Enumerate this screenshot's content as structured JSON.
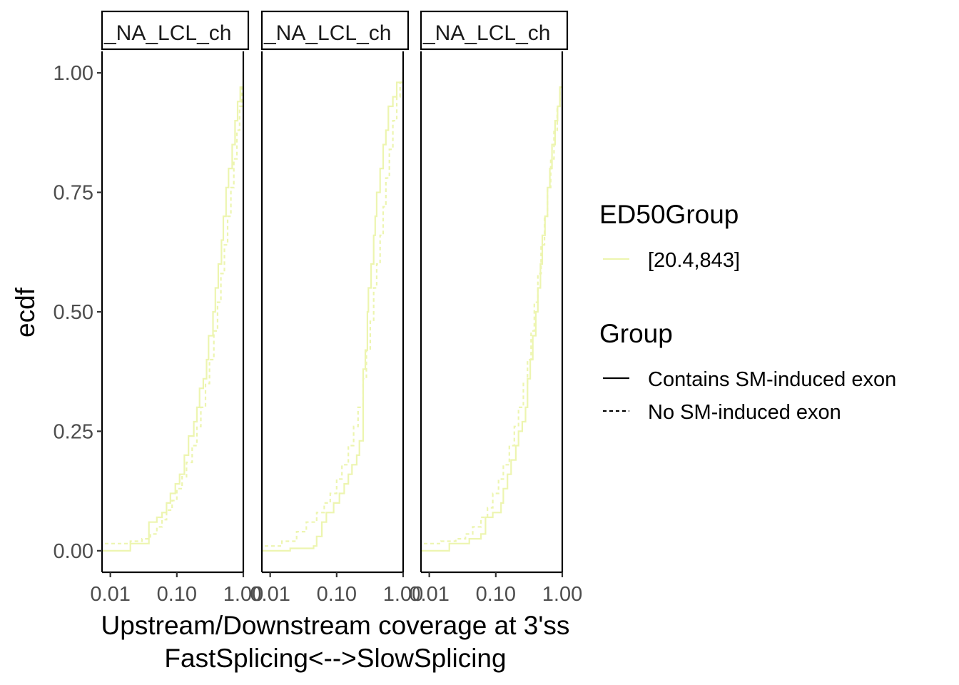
{
  "chart_data": {
    "type": "line",
    "subtype": "ecdf",
    "facets": [
      "_NA_LCL_ch",
      "_NA_LCL_ch",
      "_NA_LCL_ch"
    ],
    "xlabel_line1": "Upstream/Downstream coverage at 3'ss",
    "xlabel_line2": "FastSplicing<-->SlowSplicing",
    "ylabel": "ecdf",
    "x_scale": "log10",
    "xlim": [
      0.0075,
      1.0
    ],
    "ylim": [
      -0.045,
      1.045
    ],
    "x_ticks": [
      0.01,
      0.1,
      1.0
    ],
    "x_tick_labels": [
      "0.01",
      "0.10",
      "1.00"
    ],
    "y_ticks": [
      0,
      0.25,
      0.5,
      0.75,
      1.0
    ],
    "y_tick_labels": [
      "0.00",
      "0.25",
      "0.50",
      "0.75",
      "1.00"
    ],
    "grid": false,
    "series_color": "#edf5b0",
    "legend": {
      "placement": "right",
      "color_title": "ED50Group",
      "color_entries": [
        {
          "label": "[20.4,843]",
          "color": "#edf5b0"
        }
      ],
      "linetype_title": "Group",
      "linetype_entries": [
        {
          "label": "Contains SM-induced exon",
          "linetype": "solid"
        },
        {
          "label": "No SM-induced exon",
          "linetype": "dashed"
        }
      ]
    },
    "panels": [
      {
        "facet": "_NA_LCL_ch",
        "series": [
          {
            "name": "Contains SM-induced exon",
            "linetype": "solid",
            "x": [
              0.007,
              0.02,
              0.038,
              0.05,
              0.06,
              0.07,
              0.08,
              0.095,
              0.11,
              0.13,
              0.15,
              0.18,
              0.2,
              0.22,
              0.25,
              0.28,
              0.3,
              0.35,
              0.38,
              0.42,
              0.47,
              0.5,
              0.55,
              0.6,
              0.68,
              0.75,
              0.82,
              0.9,
              1.0
            ],
            "y": [
              0.0,
              0.015,
              0.06,
              0.07,
              0.08,
              0.1,
              0.12,
              0.14,
              0.16,
              0.2,
              0.24,
              0.27,
              0.3,
              0.34,
              0.36,
              0.4,
              0.45,
              0.5,
              0.55,
              0.6,
              0.65,
              0.7,
              0.76,
              0.8,
              0.85,
              0.9,
              0.94,
              0.97,
              1.0
            ]
          },
          {
            "name": "No SM-induced exon",
            "linetype": "dashed",
            "x": [
              0.007,
              0.02,
              0.03,
              0.04,
              0.05,
              0.06,
              0.07,
              0.085,
              0.1,
              0.12,
              0.14,
              0.17,
              0.2,
              0.23,
              0.27,
              0.31,
              0.36,
              0.41,
              0.46,
              0.52,
              0.58,
              0.65,
              0.72,
              0.8,
              0.88,
              0.95,
              1.0
            ],
            "y": [
              0.015,
              0.02,
              0.025,
              0.035,
              0.05,
              0.065,
              0.085,
              0.105,
              0.13,
              0.155,
              0.185,
              0.22,
              0.26,
              0.3,
              0.35,
              0.4,
              0.46,
              0.52,
              0.58,
              0.64,
              0.7,
              0.76,
              0.82,
              0.88,
              0.93,
              0.97,
              1.0
            ]
          }
        ]
      },
      {
        "facet": "_NA_LCL_ch",
        "series": [
          {
            "name": "Contains SM-induced exon",
            "linetype": "solid",
            "x": [
              0.007,
              0.02,
              0.045,
              0.05,
              0.06,
              0.07,
              0.09,
              0.11,
              0.13,
              0.15,
              0.17,
              0.2,
              0.22,
              0.25,
              0.27,
              0.29,
              0.3,
              0.33,
              0.36,
              0.38,
              0.4,
              0.45,
              0.5,
              0.55,
              0.6,
              0.7,
              0.8,
              1.0
            ],
            "y": [
              0.0,
              0.005,
              0.01,
              0.03,
              0.06,
              0.08,
              0.1,
              0.12,
              0.14,
              0.16,
              0.18,
              0.2,
              0.23,
              0.38,
              0.42,
              0.5,
              0.55,
              0.6,
              0.66,
              0.7,
              0.75,
              0.8,
              0.85,
              0.88,
              0.93,
              0.95,
              0.98,
              1.0
            ]
          },
          {
            "name": "No SM-induced exon",
            "linetype": "dashed",
            "x": [
              0.007,
              0.015,
              0.025,
              0.035,
              0.05,
              0.065,
              0.08,
              0.1,
              0.12,
              0.15,
              0.18,
              0.21,
              0.25,
              0.28,
              0.32,
              0.36,
              0.4,
              0.45,
              0.5,
              0.55,
              0.62,
              0.7,
              0.8,
              0.9,
              1.0
            ],
            "y": [
              0.01,
              0.02,
              0.04,
              0.06,
              0.08,
              0.1,
              0.12,
              0.15,
              0.18,
              0.22,
              0.26,
              0.3,
              0.36,
              0.42,
              0.48,
              0.55,
              0.6,
              0.66,
              0.72,
              0.78,
              0.84,
              0.9,
              0.95,
              0.98,
              1.0
            ]
          }
        ]
      },
      {
        "facet": "_NA_LCL_ch",
        "series": [
          {
            "name": "Contains SM-induced exon",
            "linetype": "solid",
            "x": [
              0.007,
              0.02,
              0.04,
              0.06,
              0.07,
              0.09,
              0.12,
              0.13,
              0.15,
              0.17,
              0.2,
              0.22,
              0.25,
              0.28,
              0.3,
              0.33,
              0.36,
              0.4,
              0.43,
              0.47,
              0.5,
              0.55,
              0.6,
              0.65,
              0.7,
              0.78,
              0.85,
              0.92,
              1.0
            ],
            "y": [
              0.0,
              0.015,
              0.025,
              0.035,
              0.07,
              0.08,
              0.1,
              0.13,
              0.16,
              0.19,
              0.22,
              0.25,
              0.27,
              0.3,
              0.36,
              0.4,
              0.45,
              0.5,
              0.55,
              0.6,
              0.66,
              0.7,
              0.76,
              0.8,
              0.85,
              0.9,
              0.93,
              0.97,
              1.0
            ]
          },
          {
            "name": "No SM-induced exon",
            "linetype": "dashed",
            "x": [
              0.007,
              0.015,
              0.025,
              0.035,
              0.045,
              0.06,
              0.075,
              0.09,
              0.11,
              0.13,
              0.16,
              0.19,
              0.22,
              0.26,
              0.3,
              0.34,
              0.38,
              0.43,
              0.48,
              0.54,
              0.6,
              0.67,
              0.75,
              0.84,
              0.92,
              1.0
            ],
            "y": [
              0.015,
              0.02,
              0.025,
              0.035,
              0.05,
              0.07,
              0.09,
              0.12,
              0.15,
              0.18,
              0.22,
              0.26,
              0.3,
              0.35,
              0.4,
              0.46,
              0.52,
              0.58,
              0.64,
              0.7,
              0.76,
              0.82,
              0.88,
              0.93,
              0.97,
              1.0
            ]
          }
        ]
      }
    ]
  }
}
